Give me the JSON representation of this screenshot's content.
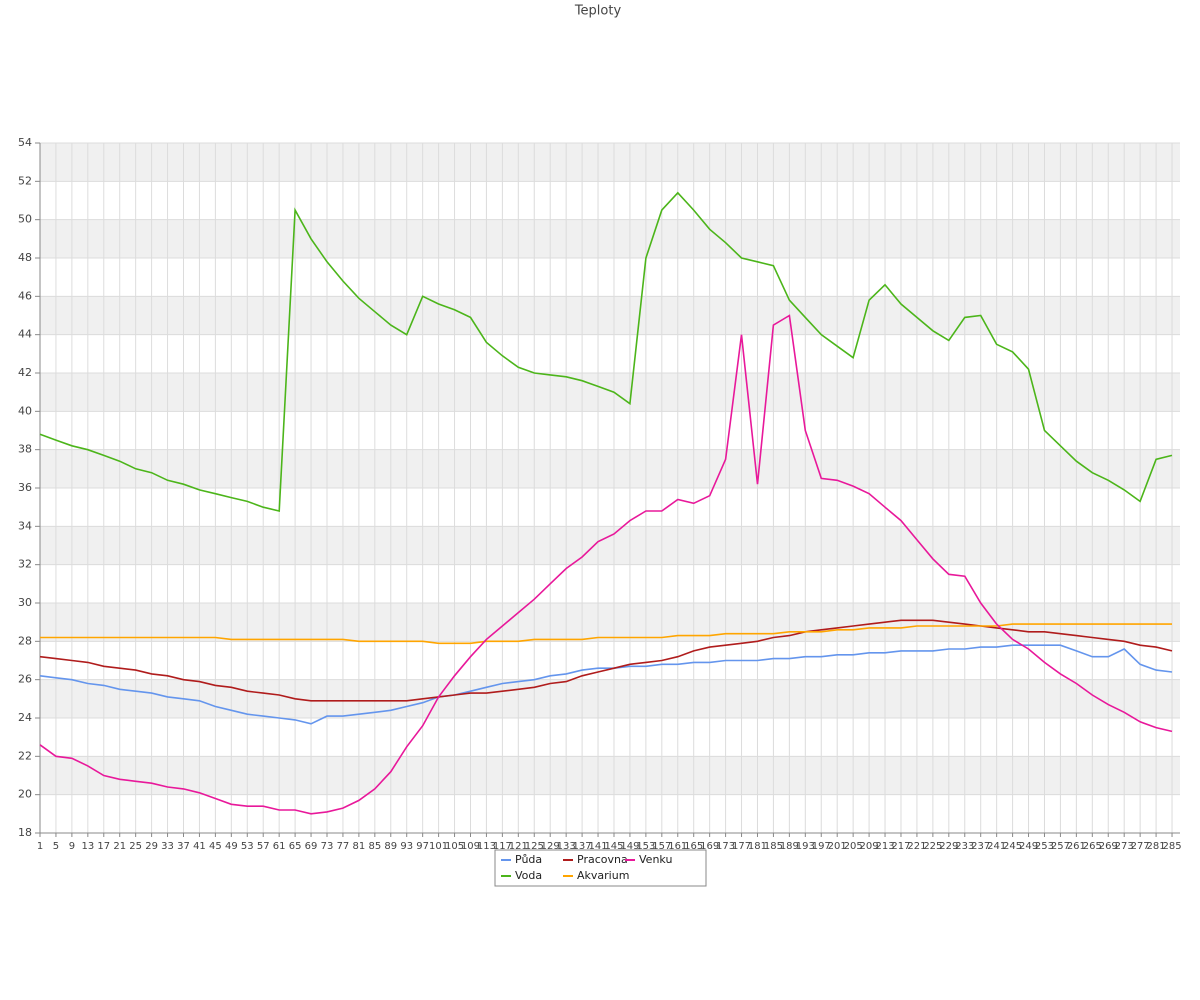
{
  "chart_data": {
    "type": "line",
    "title": "Teploty",
    "x": [
      1,
      5,
      9,
      13,
      17,
      21,
      25,
      29,
      33,
      37,
      41,
      45,
      49,
      53,
      57,
      61,
      65,
      69,
      73,
      77,
      81,
      85,
      89,
      93,
      97,
      101,
      105,
      109,
      113,
      117,
      121,
      125,
      129,
      133,
      137,
      141,
      145,
      149,
      153,
      157,
      161,
      165,
      169,
      173,
      177,
      181,
      185,
      189,
      193,
      197,
      201,
      205,
      209,
      213,
      217,
      221,
      225,
      229,
      233,
      237,
      241,
      245,
      249,
      253,
      257,
      261,
      265,
      269,
      273,
      277,
      281,
      285
    ],
    "xlim": [
      1,
      287
    ],
    "ylim": [
      18,
      54
    ],
    "yticks": [
      18,
      20,
      22,
      24,
      26,
      28,
      30,
      32,
      34,
      36,
      38,
      40,
      42,
      44,
      46,
      48,
      50,
      52,
      54
    ],
    "grid": true,
    "series": [
      {
        "name": "Půda",
        "color": "#6495ed",
        "values": [
          26.2,
          26.1,
          26.0,
          25.8,
          25.7,
          25.5,
          25.4,
          25.3,
          25.1,
          25.0,
          24.9,
          24.6,
          24.4,
          24.2,
          24.1,
          24.0,
          23.9,
          23.7,
          24.1,
          24.1,
          24.2,
          24.3,
          24.4,
          24.6,
          24.8,
          25.1,
          25.2,
          25.4,
          25.6,
          25.8,
          25.9,
          26.0,
          26.2,
          26.3,
          26.5,
          26.6,
          26.6,
          26.7,
          26.7,
          26.8,
          26.8,
          26.9,
          26.9,
          27.0,
          27.0,
          27.0,
          27.1,
          27.1,
          27.2,
          27.2,
          27.3,
          27.3,
          27.4,
          27.4,
          27.5,
          27.5,
          27.5,
          27.6,
          27.6,
          27.7,
          27.7,
          27.8,
          27.8,
          27.8,
          27.8,
          27.5,
          27.2,
          27.2,
          27.6,
          26.8,
          26.5,
          26.4
        ]
      },
      {
        "name": "Voda",
        "color": "#4cb51a",
        "values": [
          38.8,
          38.5,
          38.2,
          38.0,
          37.7,
          37.4,
          37.0,
          36.8,
          36.4,
          36.2,
          35.9,
          35.7,
          35.5,
          35.3,
          35.0,
          34.8,
          50.5,
          49.0,
          47.8,
          46.8,
          45.9,
          45.2,
          44.5,
          44.0,
          46.0,
          45.6,
          45.3,
          44.9,
          43.6,
          42.9,
          42.3,
          42.0,
          41.9,
          41.8,
          41.6,
          41.3,
          41.0,
          40.4,
          48.0,
          50.5,
          51.4,
          50.5,
          49.5,
          48.8,
          48.0,
          47.8,
          47.6,
          45.8,
          44.9,
          44.0,
          43.4,
          42.8,
          45.8,
          46.6,
          45.6,
          44.9,
          44.2,
          43.7,
          44.9,
          45.0,
          43.5,
          43.1,
          42.2,
          39.0,
          38.2,
          37.4,
          36.8,
          36.4,
          35.9,
          35.3,
          37.5,
          37.7
        ]
      },
      {
        "name": "Pracovna",
        "color": "#b01c1c",
        "values": [
          27.2,
          27.1,
          27.0,
          26.9,
          26.7,
          26.6,
          26.5,
          26.3,
          26.2,
          26.0,
          25.9,
          25.7,
          25.6,
          25.4,
          25.3,
          25.2,
          25.0,
          24.9,
          24.9,
          24.9,
          24.9,
          24.9,
          24.9,
          24.9,
          25.0,
          25.1,
          25.2,
          25.3,
          25.3,
          25.4,
          25.5,
          25.6,
          25.8,
          25.9,
          26.2,
          26.4,
          26.6,
          26.8,
          26.9,
          27.0,
          27.2,
          27.5,
          27.7,
          27.8,
          27.9,
          28.0,
          28.2,
          28.3,
          28.5,
          28.6,
          28.7,
          28.8,
          28.9,
          29.0,
          29.1,
          29.1,
          29.1,
          29.0,
          28.9,
          28.8,
          28.7,
          28.6,
          28.5,
          28.5,
          28.4,
          28.3,
          28.2,
          28.1,
          28.0,
          27.8,
          27.7,
          27.5
        ]
      },
      {
        "name": "Akvarium",
        "color": "#ffa500",
        "values": [
          28.2,
          28.2,
          28.2,
          28.2,
          28.2,
          28.2,
          28.2,
          28.2,
          28.2,
          28.2,
          28.2,
          28.2,
          28.1,
          28.1,
          28.1,
          28.1,
          28.1,
          28.1,
          28.1,
          28.1,
          28.0,
          28.0,
          28.0,
          28.0,
          28.0,
          27.9,
          27.9,
          27.9,
          28.0,
          28.0,
          28.0,
          28.1,
          28.1,
          28.1,
          28.1,
          28.2,
          28.2,
          28.2,
          28.2,
          28.2,
          28.3,
          28.3,
          28.3,
          28.4,
          28.4,
          28.4,
          28.4,
          28.5,
          28.5,
          28.5,
          28.6,
          28.6,
          28.7,
          28.7,
          28.7,
          28.8,
          28.8,
          28.8,
          28.8,
          28.8,
          28.8,
          28.9,
          28.9,
          28.9,
          28.9,
          28.9,
          28.9,
          28.9,
          28.9,
          28.9,
          28.9,
          28.9
        ]
      },
      {
        "name": "Venku",
        "color": "#e8189a",
        "values": [
          22.6,
          22.0,
          21.9,
          21.5,
          21.0,
          20.8,
          20.7,
          20.6,
          20.4,
          20.3,
          20.1,
          19.8,
          19.5,
          19.4,
          19.4,
          19.2,
          19.2,
          19.0,
          19.1,
          19.3,
          19.7,
          20.3,
          21.2,
          22.5,
          23.6,
          25.1,
          26.2,
          27.2,
          28.1,
          28.8,
          29.5,
          30.2,
          31.0,
          31.8,
          32.4,
          33.2,
          33.6,
          34.3,
          34.8,
          34.8,
          35.4,
          35.2,
          35.6,
          37.5,
          44.0,
          36.2,
          44.5,
          45.0,
          39.0,
          36.5,
          36.4,
          36.1,
          35.7,
          35.0,
          34.3,
          33.3,
          32.3,
          31.5,
          31.4,
          30.0,
          28.9,
          28.1,
          27.6,
          26.9,
          26.3,
          25.8,
          25.2,
          24.7,
          24.3,
          23.8,
          23.5,
          23.3
        ]
      }
    ]
  }
}
